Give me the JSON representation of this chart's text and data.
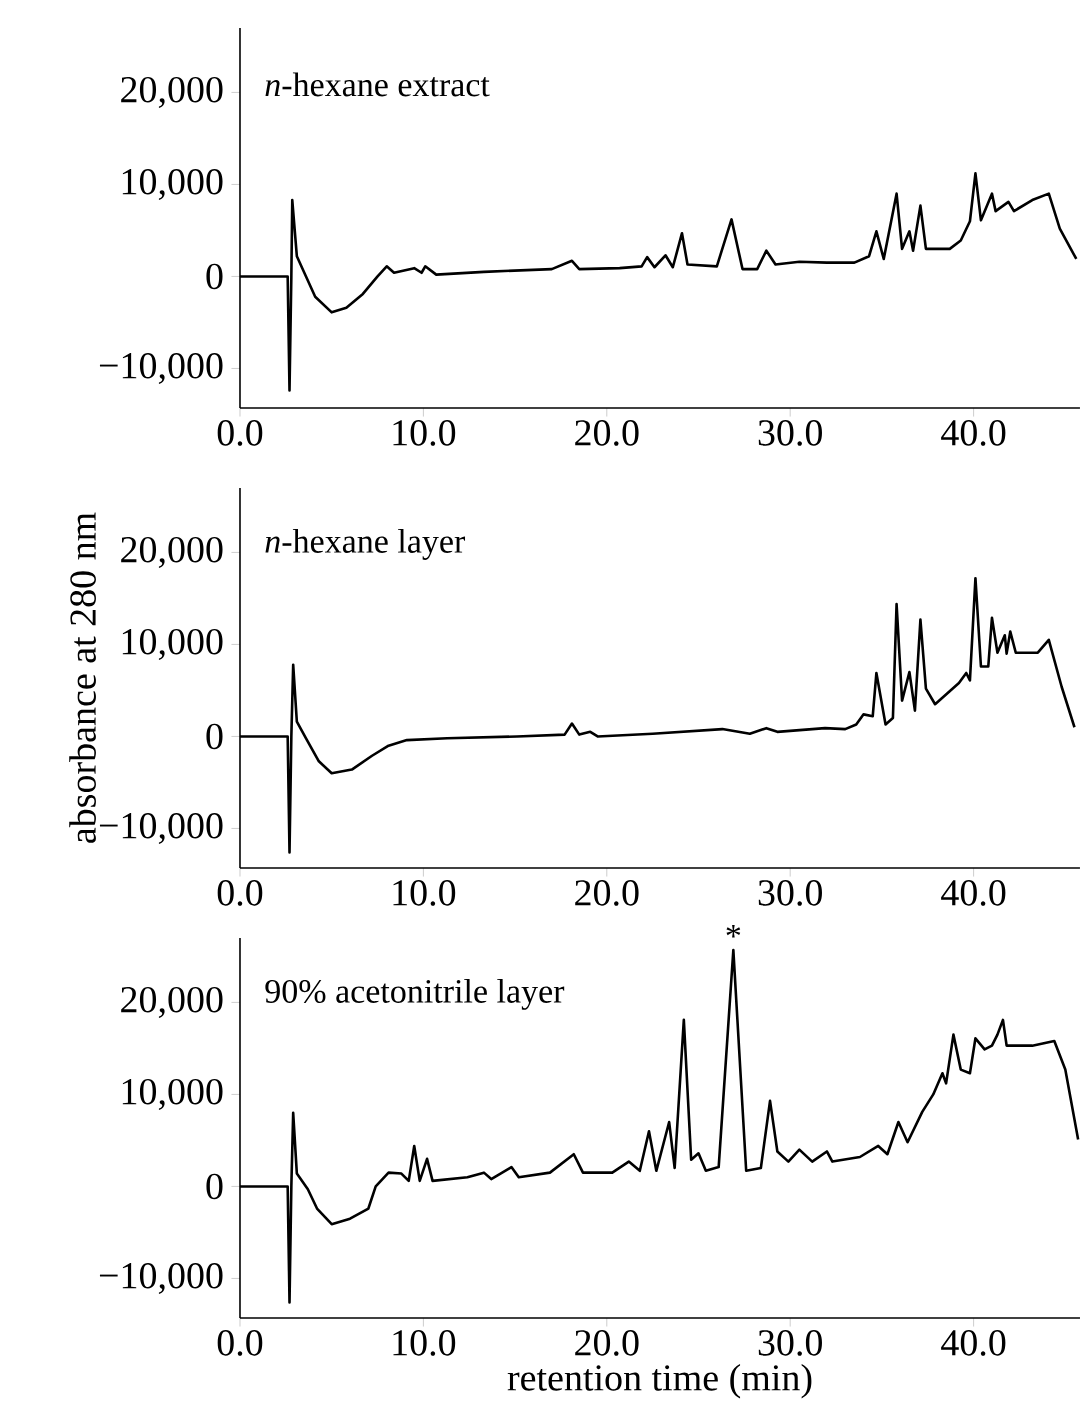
{
  "chart_data": [
    {
      "type": "line",
      "title": "*n*-hexane extract",
      "xlim": [
        0,
        45.8
      ],
      "ylim": [
        -14300,
        27000
      ],
      "xticks": [
        {
          "value": 0,
          "label": "0.0"
        },
        {
          "value": 10,
          "label": "10.0"
        },
        {
          "value": 20,
          "label": "20.0"
        },
        {
          "value": 30,
          "label": "30.0"
        },
        {
          "value": 40,
          "label": "40.0"
        }
      ],
      "yticks": [
        {
          "value": -10000,
          "label": "−10,000"
        },
        0,
        {
          "value": 10000,
          "label": "10,000"
        },
        {
          "value": 20000,
          "label": "20,000"
        }
      ],
      "series": [
        {
          "color": "#000000",
          "x": [
            0,
            2.6,
            2.7,
            2.8,
            2.85,
            3.1,
            3.6,
            4.1,
            5.0,
            5.8,
            6.7,
            7.5,
            8.0,
            8.4,
            9.5,
            9.9,
            10.1,
            10.7,
            13.3,
            17.0,
            18.1,
            18.5,
            20.7,
            21.9,
            22.2,
            22.6,
            23.2,
            23.6,
            24.1,
            24.4,
            26.0,
            26.8,
            27.4,
            28.2,
            28.7,
            29.2,
            30.5,
            32.0,
            33.5,
            34.3,
            34.7,
            35.1,
            35.8,
            36.1,
            36.5,
            36.7,
            37.1,
            37.4,
            38.7,
            39.3,
            39.8,
            40.1,
            40.4,
            41.0,
            41.2,
            41.9,
            42.2,
            43.2,
            44.1,
            44.7,
            45.6
          ],
          "values": [
            0,
            0,
            -12400,
            0,
            8300,
            2200,
            0,
            -2200,
            -3900,
            -3400,
            -1900,
            0,
            1100,
            400,
            900,
            400,
            1100,
            200,
            500,
            800,
            1700,
            800,
            900,
            1100,
            2100,
            1000,
            2300,
            1000,
            4700,
            1300,
            1100,
            6200,
            800,
            800,
            2800,
            1300,
            1600,
            1500,
            1500,
            2200,
            4900,
            1900,
            9000,
            3000,
            4900,
            2800,
            7700,
            3000,
            3000,
            3900,
            6000,
            11200,
            6100,
            9000,
            7100,
            8100,
            7100,
            8300,
            9000,
            5200,
            1900
          ]
        }
      ]
    },
    {
      "type": "line",
      "title": "*n*-hexane layer",
      "ylabel": "absorbance at 280 nm",
      "xlim": [
        0,
        45.8
      ],
      "ylim": [
        -14300,
        27000
      ],
      "xticks": [
        {
          "value": 0,
          "label": "0.0"
        },
        {
          "value": 10,
          "label": "10.0"
        },
        {
          "value": 20,
          "label": "20.0"
        },
        {
          "value": 30,
          "label": "30.0"
        },
        {
          "value": 40,
          "label": "40.0"
        }
      ],
      "yticks": [
        {
          "value": -10000,
          "label": "−10,000"
        },
        0,
        {
          "value": 10000,
          "label": "10,000"
        },
        {
          "value": 20000,
          "label": "20,000"
        }
      ],
      "series": [
        {
          "color": "#000000",
          "x": [
            0,
            2.6,
            2.7,
            2.8,
            2.9,
            3.1,
            3.6,
            4.3,
            5.0,
            6.1,
            7.2,
            8.1,
            9.1,
            11.3,
            15.1,
            17.7,
            18.1,
            18.5,
            19.1,
            19.5,
            22.5,
            26.3,
            27.8,
            28.7,
            29.3,
            31.9,
            33.0,
            33.6,
            34.0,
            34.5,
            34.7,
            35.2,
            35.6,
            35.8,
            36.1,
            36.5,
            36.8,
            37.1,
            37.4,
            37.9,
            39.2,
            39.6,
            39.8,
            40.1,
            40.4,
            40.8,
            41.0,
            41.3,
            41.7,
            41.8,
            42.0,
            42.3,
            43.5,
            44.1,
            44.8,
            45.5
          ],
          "values": [
            0,
            0,
            -12600,
            0,
            7800,
            1600,
            -200,
            -2700,
            -4000,
            -3600,
            -2100,
            -1000,
            -400,
            -200,
            0,
            200,
            1400,
            200,
            500,
            0,
            300,
            800,
            300,
            900,
            500,
            900,
            800,
            1300,
            2400,
            2200,
            6900,
            1300,
            2000,
            14400,
            3900,
            7000,
            2800,
            12700,
            5200,
            3500,
            5800,
            6900,
            6100,
            17200,
            7600,
            7600,
            12900,
            9100,
            11000,
            9000,
            11400,
            9100,
            9100,
            10500,
            5400,
            1000
          ]
        }
      ]
    },
    {
      "type": "line",
      "title": "90% acetonitrile layer",
      "xlabel": "retention time (min)",
      "xlim": [
        0,
        45.8
      ],
      "ylim": [
        -14300,
        27000
      ],
      "xticks": [
        {
          "value": 0,
          "label": "0.0"
        },
        {
          "value": 10,
          "label": "10.0"
        },
        {
          "value": 20,
          "label": "20.0"
        },
        {
          "value": 30,
          "label": "30.0"
        },
        {
          "value": 40,
          "label": "40.0"
        }
      ],
      "yticks": [
        {
          "value": -10000,
          "label": "−10,000"
        },
        0,
        {
          "value": 10000,
          "label": "10,000"
        },
        {
          "value": 20000,
          "label": "20,000"
        }
      ],
      "annotations": [
        {
          "text": "*",
          "x": 26.9,
          "y": 25700
        }
      ],
      "series": [
        {
          "color": "#000000",
          "x": [
            0,
            2.6,
            2.7,
            2.8,
            2.9,
            3.1,
            3.7,
            4.2,
            5.0,
            6.0,
            7.0,
            7.4,
            8.1,
            8.8,
            9.2,
            9.5,
            9.8,
            10.2,
            10.5,
            12.4,
            13.3,
            13.7,
            14.8,
            15.2,
            16.9,
            18.2,
            18.7,
            20.3,
            21.2,
            21.8,
            22.3,
            22.7,
            23.4,
            23.7,
            24.2,
            24.6,
            25.0,
            25.4,
            26.1,
            26.9,
            27.6,
            28.4,
            28.9,
            29.3,
            29.9,
            30.5,
            31.2,
            32.0,
            32.3,
            33.8,
            34.8,
            35.3,
            35.9,
            36.4,
            37.2,
            37.8,
            38.3,
            38.5,
            38.9,
            39.3,
            39.8,
            40.1,
            40.6,
            41.0,
            41.3,
            41.6,
            41.8,
            43.2,
            44.4,
            45.0,
            45.7
          ],
          "values": [
            0,
            0,
            -12600,
            0,
            8000,
            1400,
            -300,
            -2400,
            -4100,
            -3500,
            -2400,
            0,
            1500,
            1400,
            600,
            4400,
            600,
            3000,
            600,
            1000,
            1500,
            800,
            2100,
            1000,
            1500,
            3500,
            1500,
            1500,
            2700,
            1700,
            6000,
            1700,
            7000,
            2000,
            18100,
            2900,
            3600,
            1700,
            2100,
            25700,
            1700,
            2000,
            9300,
            3800,
            2700,
            4000,
            2700,
            3800,
            2700,
            3200,
            4400,
            3500,
            7000,
            4800,
            8100,
            10000,
            12300,
            11200,
            16500,
            12700,
            12300,
            16100,
            14900,
            15300,
            16500,
            18100,
            15300,
            15300,
            15800,
            12700,
            5100
          ]
        }
      ]
    }
  ]
}
